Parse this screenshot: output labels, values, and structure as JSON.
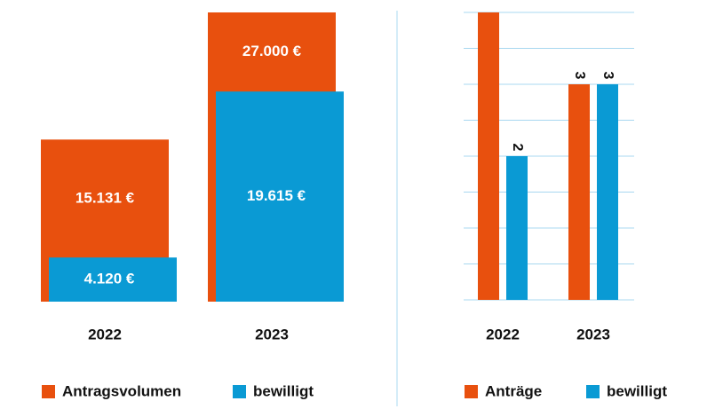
{
  "charts": [
    {
      "chart_data": {
        "type": "overlap-bar",
        "categories": [
          "2022",
          "2023"
        ],
        "series": [
          {
            "name": "Antragsvolumen",
            "color": "#e8500e",
            "values": [
              15131,
              27000
            ],
            "value_labels": [
              "15.131 €",
              "27.000 €"
            ]
          },
          {
            "name": "bewilligt",
            "color": "#0a9ad4",
            "values": [
              4120,
              19615
            ],
            "value_labels": [
              "4.120 €",
              "19.615 €"
            ]
          }
        ]
      }
    },
    {
      "chart_data": {
        "type": "bar",
        "categories": [
          "2022",
          "2023"
        ],
        "ylim": [
          0,
          4
        ],
        "yticks": [
          0,
          0.5,
          1,
          1.5,
          2,
          2.5,
          3,
          3.5,
          4
        ],
        "grid": true,
        "series": [
          {
            "name": "Anträge",
            "color": "#e8500e",
            "values": [
              4,
              3
            ],
            "value_labels": [
              null,
              "3"
            ]
          },
          {
            "name": "bewilligt",
            "color": "#0a9ad4",
            "values": [
              2,
              3
            ],
            "value_labels": [
              "2",
              "3"
            ]
          }
        ]
      }
    }
  ]
}
